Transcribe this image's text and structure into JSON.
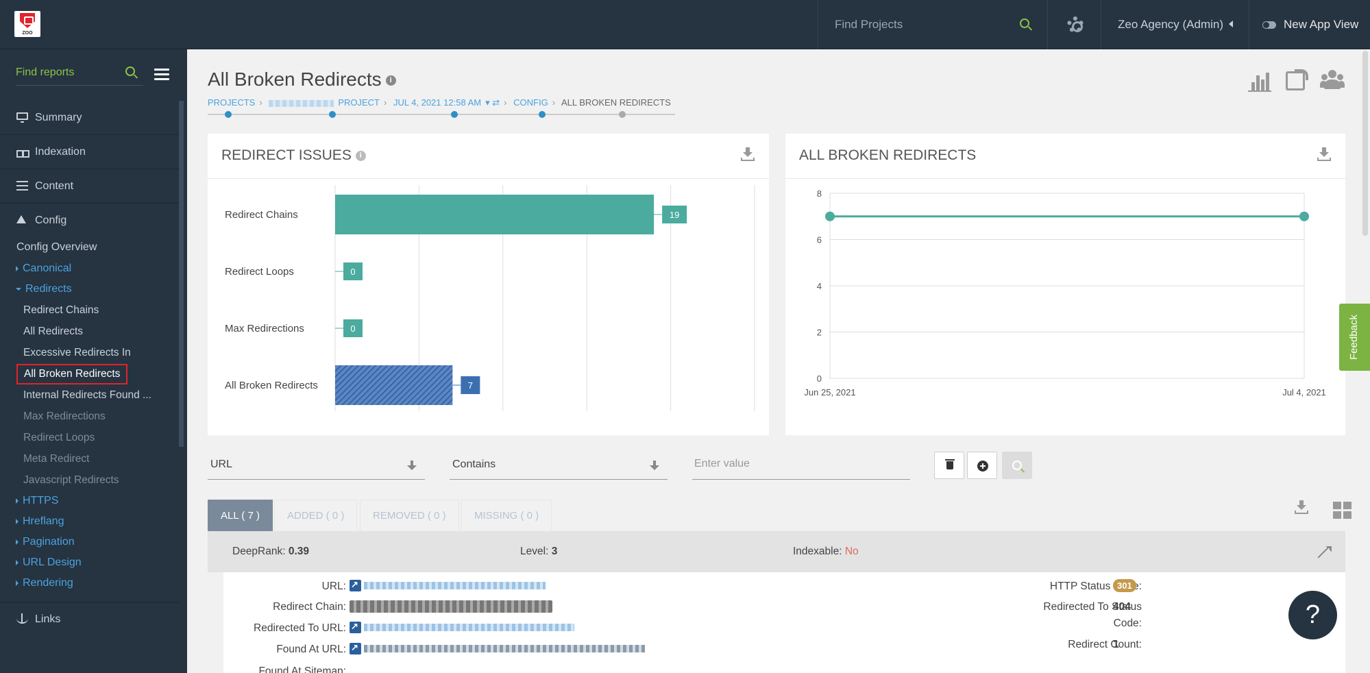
{
  "topbar": {
    "logo_text": "ZOO",
    "search_placeholder": "Find Projects",
    "account": "Zeo Agency (Admin)",
    "new_view": "New App View"
  },
  "sidebar": {
    "search_placeholder": "Find reports",
    "main": [
      {
        "label": "Summary",
        "icon": "monitor-icon"
      },
      {
        "label": "Indexation",
        "icon": "cubes-icon"
      },
      {
        "label": "Content",
        "icon": "list-icon"
      },
      {
        "label": "Config",
        "icon": "flask-icon"
      }
    ],
    "config_overview": "Config Overview",
    "groups_before": [
      {
        "label": "Canonical"
      }
    ],
    "redirects_group": "Redirects",
    "redirect_items": [
      {
        "label": "Redirect Chains",
        "state": "normal"
      },
      {
        "label": "All Redirects",
        "state": "normal"
      },
      {
        "label": "Excessive Redirects In",
        "state": "normal"
      },
      {
        "label": "All Broken Redirects",
        "state": "active"
      },
      {
        "label": "Internal Redirects Found ...",
        "state": "normal"
      },
      {
        "label": "Max Redirections",
        "state": "dim"
      },
      {
        "label": "Redirect Loops",
        "state": "dim"
      },
      {
        "label": "Meta Redirect",
        "state": "dim"
      },
      {
        "label": "Javascript Redirects",
        "state": "dim"
      }
    ],
    "groups_after": [
      {
        "label": "HTTPS"
      },
      {
        "label": "Hreflang"
      },
      {
        "label": "Pagination"
      },
      {
        "label": "URL Design"
      },
      {
        "label": "Rendering"
      }
    ],
    "links": "Links"
  },
  "page": {
    "title": "All Broken Redirects",
    "breadcrumb": {
      "projects": "PROJECTS",
      "project": "PROJECT",
      "date": "JUL 4, 2021 12:58 AM",
      "config": "CONFIG",
      "current": "ALL BROKEN REDIRECTS"
    }
  },
  "redirect_issues": {
    "title": "REDIRECT ISSUES",
    "chart_data": {
      "type": "bar",
      "orientation": "horizontal",
      "categories": [
        "Redirect Chains",
        "Redirect Loops",
        "Max Redirections",
        "All Broken Redirects"
      ],
      "values": [
        19,
        0,
        0,
        7
      ],
      "colors": [
        "#4aab9e",
        "#4aab9e",
        "#4aab9e",
        "#3c6fb0"
      ],
      "highlighted": "All Broken Redirects",
      "xlim": [
        0,
        25
      ]
    }
  },
  "broken_trend": {
    "title": "ALL BROKEN REDIRECTS",
    "chart_data": {
      "type": "line",
      "x": [
        "Jun 25, 2021",
        "Jul 4, 2021"
      ],
      "series": [
        {
          "values": [
            7,
            7
          ],
          "color": "#4aab9e"
        }
      ],
      "ylim": [
        0,
        8
      ],
      "yticks": [
        0,
        2,
        4,
        6,
        8
      ],
      "grid": true
    }
  },
  "filter": {
    "field": "URL",
    "operator": "Contains",
    "value_placeholder": "Enter value"
  },
  "tabs": [
    {
      "label": "ALL ( 7 )",
      "active": true
    },
    {
      "label": "ADDED ( 0 )",
      "active": false
    },
    {
      "label": "REMOVED ( 0 )",
      "active": false
    },
    {
      "label": "MISSING ( 0 )",
      "active": false
    }
  ],
  "detail": {
    "deeprank_label": "DeepRank:",
    "deeprank": "0.39",
    "level_label": "Level:",
    "level": "3",
    "indexable_label": "Indexable:",
    "indexable": "No",
    "url_label": "URL:",
    "chain_label": "Redirect Chain:",
    "redirected_to_label": "Redirected To URL:",
    "found_at_label": "Found At URL:",
    "found_sitemap_label": "Found At Sitemap:",
    "http_status_label": "HTTP Status Code:",
    "http_status": "301",
    "redir_status_label": "Redirected To Status",
    "redir_status_label2": "Code:",
    "redir_status": "404",
    "redir_count_label": "Redirect Count:",
    "redir_count": "1"
  },
  "feedback": "Feedback",
  "help": "?"
}
